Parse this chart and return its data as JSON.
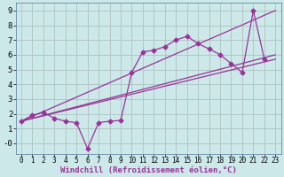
{
  "background_color": "#cce8e8",
  "grid_color": "#aabbbb",
  "line_color": "#993399",
  "xlabel": "Windchill (Refroidissement éolien,°C)",
  "xlabel_fontsize": 6.5,
  "xtick_fontsize": 5.5,
  "ytick_fontsize": 6.5,
  "xlim": [
    -0.5,
    23.5
  ],
  "ylim": [
    -0.7,
    9.5
  ],
  "yticks": [
    0,
    1,
    2,
    3,
    4,
    5,
    6,
    7,
    8,
    9
  ],
  "ytick_labels": [
    "-0",
    "1",
    "2",
    "3",
    "4",
    "5",
    "6",
    "7",
    "8",
    "9"
  ],
  "xticks": [
    0,
    1,
    2,
    3,
    4,
    5,
    6,
    7,
    8,
    9,
    10,
    11,
    12,
    13,
    14,
    15,
    16,
    17,
    18,
    19,
    20,
    21,
    22,
    23
  ],
  "line1_x": [
    0,
    1,
    2,
    3,
    4,
    5,
    6,
    7,
    8,
    9,
    10,
    11,
    12,
    13,
    14,
    15,
    16,
    17,
    18,
    19,
    20,
    21,
    22
  ],
  "line1_y": [
    1.5,
    1.9,
    2.1,
    1.7,
    1.5,
    1.4,
    -0.35,
    1.4,
    1.5,
    1.55,
    4.8,
    6.2,
    6.3,
    6.55,
    7.0,
    7.25,
    6.75,
    6.4,
    6.0,
    5.4,
    4.8,
    9.0,
    5.7
  ],
  "line2_pts": [
    [
      0,
      1.5
    ],
    [
      23,
      9.0
    ]
  ],
  "line3_pts": [
    [
      0,
      1.5
    ],
    [
      23,
      6.0
    ]
  ],
  "line4_pts": [
    [
      0,
      1.5
    ],
    [
      23,
      5.7
    ]
  ]
}
